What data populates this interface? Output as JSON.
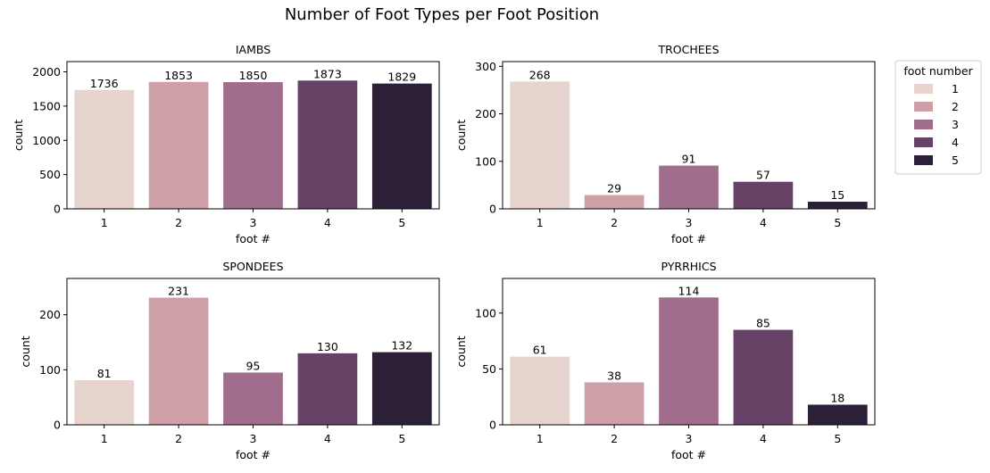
{
  "figure": {
    "suptitle": "Number of Foot Types per Foot Position"
  },
  "legend": {
    "title": "foot number",
    "placement": "right",
    "entries": [
      "1",
      "2",
      "3",
      "4",
      "5"
    ]
  },
  "colors": [
    "#e8d4cf",
    "#ce9fa7",
    "#a16d8c",
    "#654266",
    "#2c1f38"
  ],
  "chart_data": [
    {
      "type": "bar",
      "title": "IAMBS",
      "xlabel": "foot #",
      "ylabel": "count",
      "categories": [
        "1",
        "2",
        "3",
        "4",
        "5"
      ],
      "values": [
        1736,
        1853,
        1850,
        1873,
        1829
      ],
      "data_labels": [
        "1736",
        "1853",
        "1850",
        "1873",
        "1829"
      ],
      "ylim": [
        0,
        2150
      ],
      "yticks": [
        0,
        500,
        1000,
        1500,
        2000
      ],
      "grid": false
    },
    {
      "type": "bar",
      "title": "TROCHEES",
      "xlabel": "foot #",
      "ylabel": "count",
      "categories": [
        "1",
        "2",
        "3",
        "4",
        "5"
      ],
      "values": [
        268,
        29,
        91,
        57,
        15
      ],
      "data_labels": [
        "268",
        "29",
        "91",
        "57",
        "15"
      ],
      "ylim": [
        0,
        310
      ],
      "yticks": [
        0,
        100,
        200,
        300
      ],
      "grid": false
    },
    {
      "type": "bar",
      "title": "SPONDEES",
      "xlabel": "foot #",
      "ylabel": "count",
      "categories": [
        "1",
        "2",
        "3",
        "4",
        "5"
      ],
      "values": [
        81,
        231,
        95,
        130,
        132
      ],
      "data_labels": [
        "81",
        "231",
        "95",
        "130",
        "132"
      ],
      "ylim": [
        0,
        266
      ],
      "yticks": [
        0,
        100,
        200
      ],
      "grid": false
    },
    {
      "type": "bar",
      "title": "PYRRHICS",
      "xlabel": "foot #",
      "ylabel": "count",
      "categories": [
        "1",
        "2",
        "3",
        "4",
        "5"
      ],
      "values": [
        61,
        38,
        114,
        85,
        18
      ],
      "data_labels": [
        "61",
        "38",
        "114",
        "85",
        "18"
      ],
      "ylim": [
        0,
        131
      ],
      "yticks": [
        0,
        50,
        100
      ],
      "grid": false
    }
  ]
}
